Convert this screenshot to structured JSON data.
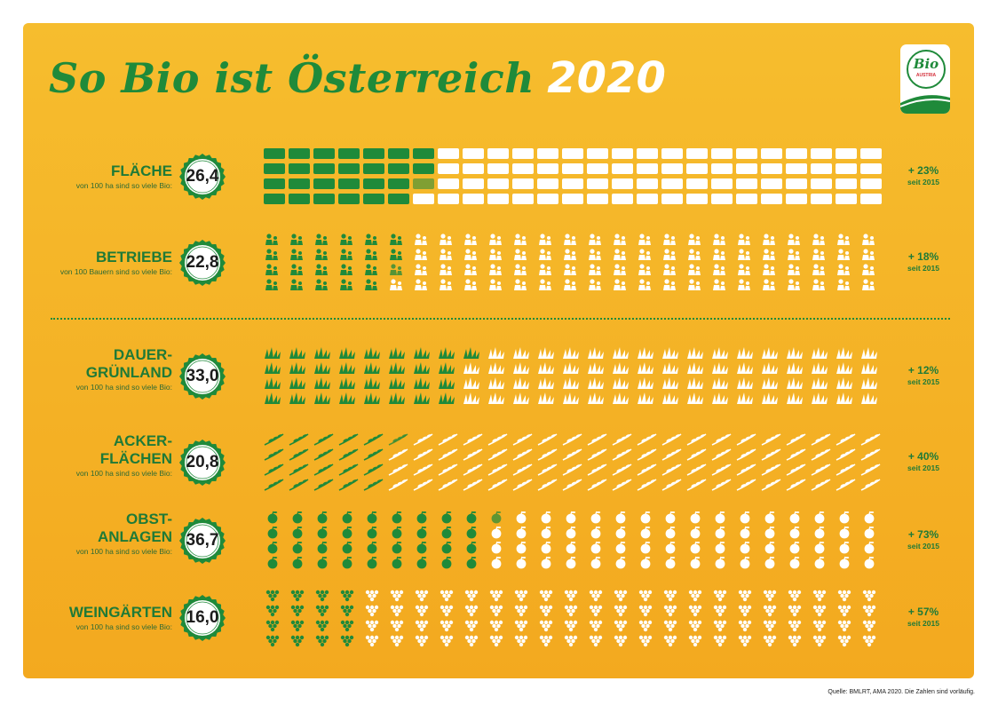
{
  "title": {
    "main": "So Bio ist Österreich",
    "year": "2020"
  },
  "logo": {
    "word": "Bio",
    "sub": "AUSTRIA"
  },
  "colors": {
    "green": "#1f8a3a",
    "white": "#ffffff",
    "background": "#f5b52a"
  },
  "chart_data": {
    "type": "pictogram",
    "rows": [
      {
        "label": "FLÄCHE",
        "sublabel": "von 100 ha sind so viele Bio:",
        "value": "26,4",
        "change": "+ 23%",
        "since": "seit 2015",
        "icon": "field-block-icon",
        "green_units": 26.4,
        "columns": 25,
        "icon_rows": 4
      },
      {
        "label": "BETRIEBE",
        "sublabel": "von 100 Bauern sind so viele Bio:",
        "value": "22,8",
        "change": "+ 18%",
        "since": "seit 2015",
        "icon": "farmer-icon",
        "green_units": 22.8,
        "columns": 25,
        "icon_rows": 4
      },
      {
        "label": "DAUER-\nGRÜNLAND",
        "sublabel": "von 100 ha sind so viele Bio:",
        "value": "33,0",
        "change": "+ 12%",
        "since": "seit 2015",
        "icon": "grass-icon",
        "green_units": 33.0,
        "columns": 25,
        "icon_rows": 4
      },
      {
        "label": "ACKER-\nFLÄCHEN",
        "sublabel": "von 100 ha sind so viele Bio:",
        "value": "20,8",
        "change": "+ 40%",
        "since": "seit 2015",
        "icon": "grain-icon",
        "green_units": 20.8,
        "columns": 25,
        "icon_rows": 4
      },
      {
        "label": "OBST-\nANLAGEN",
        "sublabel": "von 100 ha sind so viele Bio:",
        "value": "36,7",
        "change": "+ 73%",
        "since": "seit 2015",
        "icon": "apple-icon",
        "green_units": 36.7,
        "columns": 25,
        "icon_rows": 4
      },
      {
        "label": "WEINGÄRTEN",
        "sublabel": "von 100 ha sind so viele Bio:",
        "value": "16,0",
        "change": "+ 57%",
        "since": "seit 2015",
        "icon": "grape-icon",
        "green_units": 16.0,
        "columns": 25,
        "icon_rows": 4
      }
    ]
  },
  "source": "Quelle: BMLRT, AMA 2020. Die Zahlen sind vorläufig."
}
